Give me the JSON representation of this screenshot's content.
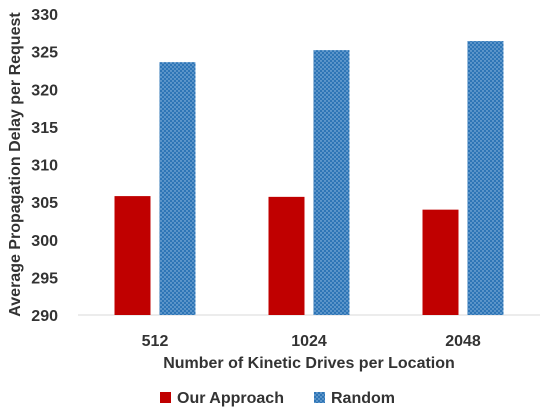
{
  "chart_data": {
    "type": "bar",
    "title": "",
    "xlabel": "Number of Kinetic Drives per Location",
    "ylabel": "Average Propagation Delay per Request",
    "categories": [
      "512",
      "1024",
      "2048"
    ],
    "series": [
      {
        "name": "Our Approach",
        "values": [
          305.8,
          305.7,
          304.0
        ],
        "color": "#c00000",
        "pattern": "solid"
      },
      {
        "name": "Random",
        "values": [
          323.6,
          325.2,
          326.4
        ],
        "color": "#2e75b6",
        "pattern": "dotted"
      }
    ],
    "ylim": [
      290,
      330
    ],
    "yticks": [
      290,
      295,
      300,
      305,
      310,
      315,
      320,
      325,
      330
    ],
    "grid": false,
    "legend": "bottom"
  }
}
